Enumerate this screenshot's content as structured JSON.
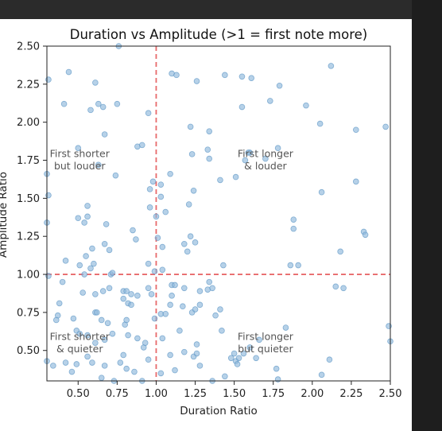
{
  "chart_data": {
    "type": "scatter",
    "title": "Duration vs Amplitude (>1 = first note more)",
    "xlabel": "Duration Ratio",
    "ylabel": "Amplitude Ratio",
    "xlim": [
      0.3,
      2.5
    ],
    "ylim": [
      0.3,
      2.5
    ],
    "xticks": [
      "0.50",
      "0.75",
      "1.00",
      "1.25",
      "1.50",
      "1.75",
      "2.00",
      "2.25",
      "2.50"
    ],
    "yticks": [
      "0.50",
      "0.75",
      "1.00",
      "1.25",
      "1.50",
      "1.75",
      "2.00",
      "2.25",
      "2.50"
    ],
    "reference_lines": {
      "x": 1.0,
      "y": 1.0,
      "color": "#e8696b",
      "style": "dashed"
    },
    "point_color": "#8fb8db",
    "annotations": [
      {
        "text": [
          "First shorter",
          "but louder"
        ],
        "x": 0.51,
        "y": 1.77
      },
      {
        "text": [
          "First longer",
          "& louder"
        ],
        "x": 1.7,
        "y": 1.77
      },
      {
        "text": [
          "First shorter",
          "& quieter"
        ],
        "x": 0.51,
        "y": 0.57
      },
      {
        "text": [
          "First longer",
          "but quieter"
        ],
        "x": 1.7,
        "y": 0.57
      }
    ],
    "points": [
      [
        0.31,
        2.28
      ],
      [
        0.44,
        2.33
      ],
      [
        0.61,
        2.26
      ],
      [
        0.41,
        2.12
      ],
      [
        0.58,
        2.08
      ],
      [
        0.63,
        2.12
      ],
      [
        0.66,
        2.1
      ],
      [
        0.75,
        2.12
      ],
      [
        0.67,
        1.92
      ],
      [
        0.95,
        2.06
      ],
      [
        0.5,
        1.83
      ],
      [
        0.88,
        1.84
      ],
      [
        0.91,
        1.85
      ],
      [
        0.63,
        1.72
      ],
      [
        0.74,
        1.65
      ],
      [
        0.3,
        1.66
      ],
      [
        0.31,
        1.52
      ],
      [
        0.96,
        1.56
      ],
      [
        0.98,
        1.61
      ],
      [
        1.03,
        1.59
      ],
      [
        0.96,
        1.44
      ],
      [
        0.56,
        1.45
      ],
      [
        0.5,
        1.37
      ],
      [
        0.56,
        1.38
      ],
      [
        0.54,
        1.34
      ],
      [
        0.68,
        1.33
      ],
      [
        1.06,
        1.41
      ],
      [
        1.03,
        1.51
      ],
      [
        0.3,
        1.34
      ],
      [
        1.0,
        1.38
      ],
      [
        0.85,
        1.29
      ],
      [
        0.87,
        1.23
      ],
      [
        1.01,
        1.24
      ],
      [
        1.04,
        1.18
      ],
      [
        0.67,
        1.2
      ],
      [
        0.59,
        1.17
      ],
      [
        0.7,
        1.16
      ],
      [
        0.55,
        1.12
      ],
      [
        0.42,
        1.09
      ],
      [
        0.51,
        1.06
      ],
      [
        0.6,
        1.07
      ],
      [
        0.58,
        1.04
      ],
      [
        0.95,
        1.07
      ],
      [
        0.71,
        1.0
      ],
      [
        0.72,
        1.01
      ],
      [
        0.31,
        0.99
      ],
      [
        0.4,
        0.95
      ],
      [
        0.53,
        0.88
      ],
      [
        0.54,
        1.0
      ],
      [
        0.61,
        0.87
      ],
      [
        0.66,
        0.89
      ],
      [
        0.7,
        0.91
      ],
      [
        0.79,
        0.89
      ],
      [
        0.81,
        0.89
      ],
      [
        0.84,
        0.87
      ],
      [
        0.88,
        0.86
      ],
      [
        0.95,
        0.91
      ],
      [
        0.97,
        0.87
      ],
      [
        0.79,
        0.84
      ],
      [
        0.82,
        0.81
      ],
      [
        0.38,
        0.81
      ],
      [
        0.37,
        0.73
      ],
      [
        0.36,
        0.7
      ],
      [
        0.47,
        0.71
      ],
      [
        0.61,
        0.75
      ],
      [
        0.62,
        0.75
      ],
      [
        0.65,
        0.7
      ],
      [
        0.69,
        0.68
      ],
      [
        0.8,
        0.67
      ],
      [
        0.81,
        0.7
      ],
      [
        0.84,
        0.8
      ],
      [
        0.99,
        0.71
      ],
      [
        1.03,
        0.74
      ],
      [
        1.06,
        0.74
      ],
      [
        1.09,
        0.8
      ],
      [
        1.1,
        0.86
      ],
      [
        1.1,
        0.93
      ],
      [
        1.12,
        0.93
      ],
      [
        1.18,
        0.91
      ],
      [
        1.17,
        0.79
      ],
      [
        1.23,
        0.75
      ],
      [
        1.25,
        0.77
      ],
      [
        1.28,
        0.8
      ],
      [
        1.28,
        0.89
      ],
      [
        1.33,
        0.9
      ],
      [
        1.34,
        0.95
      ],
      [
        1.36,
        0.91
      ],
      [
        1.43,
        1.06
      ],
      [
        1.38,
        0.73
      ],
      [
        1.41,
        0.77
      ],
      [
        1.42,
        0.63
      ],
      [
        1.15,
        0.63
      ],
      [
        0.49,
        0.63
      ],
      [
        0.51,
        0.61
      ],
      [
        0.56,
        0.6
      ],
      [
        0.61,
        0.55
      ],
      [
        0.67,
        0.57
      ],
      [
        0.72,
        0.61
      ],
      [
        0.82,
        0.6
      ],
      [
        0.88,
        0.58
      ],
      [
        0.92,
        0.52
      ],
      [
        0.93,
        0.55
      ],
      [
        1.04,
        0.58
      ],
      [
        1.18,
        0.49
      ],
      [
        1.24,
        0.46
      ],
      [
        1.26,
        0.54
      ],
      [
        1.26,
        0.48
      ],
      [
        1.09,
        0.47
      ],
      [
        1.03,
        0.35
      ],
      [
        0.3,
        0.43
      ],
      [
        0.34,
        0.4
      ],
      [
        0.42,
        0.42
      ],
      [
        0.46,
        0.36
      ],
      [
        0.49,
        0.41
      ],
      [
        0.56,
        0.46
      ],
      [
        0.59,
        0.42
      ],
      [
        0.65,
        0.32
      ],
      [
        0.67,
        0.4
      ],
      [
        0.73,
        0.3
      ],
      [
        0.77,
        0.42
      ],
      [
        0.79,
        0.47
      ],
      [
        0.81,
        0.38
      ],
      [
        0.86,
        0.36
      ],
      [
        0.91,
        0.3
      ],
      [
        0.95,
        0.44
      ],
      [
        1.12,
        0.37
      ],
      [
        1.28,
        0.4
      ],
      [
        1.36,
        0.3
      ],
      [
        1.44,
        0.33
      ],
      [
        1.48,
        0.45
      ],
      [
        1.5,
        0.48
      ],
      [
        1.51,
        0.43
      ],
      [
        1.52,
        0.41
      ],
      [
        1.53,
        0.45
      ],
      [
        1.56,
        0.48
      ],
      [
        1.6,
        0.52
      ],
      [
        1.64,
        0.45
      ],
      [
        1.66,
        0.57
      ],
      [
        1.77,
        0.38
      ],
      [
        1.78,
        0.31
      ],
      [
        1.83,
        0.65
      ],
      [
        2.06,
        0.34
      ],
      [
        2.11,
        0.44
      ],
      [
        2.49,
        0.66
      ],
      [
        2.5,
        0.56
      ],
      [
        2.15,
        0.92
      ],
      [
        2.2,
        0.91
      ],
      [
        2.18,
        1.15
      ],
      [
        1.86,
        1.06
      ],
      [
        1.91,
        1.06
      ],
      [
        1.88,
        1.3
      ],
      [
        1.88,
        1.36
      ],
      [
        2.33,
        1.28
      ],
      [
        2.34,
        1.26
      ],
      [
        2.28,
        1.61
      ],
      [
        2.06,
        1.54
      ],
      [
        1.78,
        1.83
      ],
      [
        1.6,
        1.8
      ],
      [
        1.59,
        1.8
      ],
      [
        1.51,
        1.64
      ],
      [
        1.41,
        1.62
      ],
      [
        1.34,
        1.76
      ],
      [
        1.33,
        1.82
      ],
      [
        1.34,
        1.94
      ],
      [
        1.22,
        1.97
      ],
      [
        1.23,
        1.79
      ],
      [
        1.09,
        1.66
      ],
      [
        1.21,
        1.46
      ],
      [
        1.22,
        1.25
      ],
      [
        1.25,
        1.21
      ],
      [
        1.18,
        1.2
      ],
      [
        1.24,
        1.55
      ],
      [
        1.44,
        2.31
      ],
      [
        1.55,
        2.3
      ],
      [
        1.61,
        2.29
      ],
      [
        1.79,
        2.24
      ],
      [
        1.73,
        2.14
      ],
      [
        1.55,
        2.1
      ],
      [
        1.96,
        2.11
      ],
      [
        2.05,
        1.99
      ],
      [
        2.28,
        1.95
      ],
      [
        2.47,
        1.97
      ],
      [
        2.12,
        2.37
      ],
      [
        1.1,
        2.32
      ],
      [
        1.13,
        2.31
      ],
      [
        1.26,
        2.27
      ],
      [
        0.76,
        2.5
      ],
      [
        1.2,
        1.15
      ],
      [
        0.99,
        1.02
      ],
      [
        1.04,
        1.03
      ],
      [
        1.57,
        1.75
      ],
      [
        1.7,
        1.76
      ]
    ]
  }
}
